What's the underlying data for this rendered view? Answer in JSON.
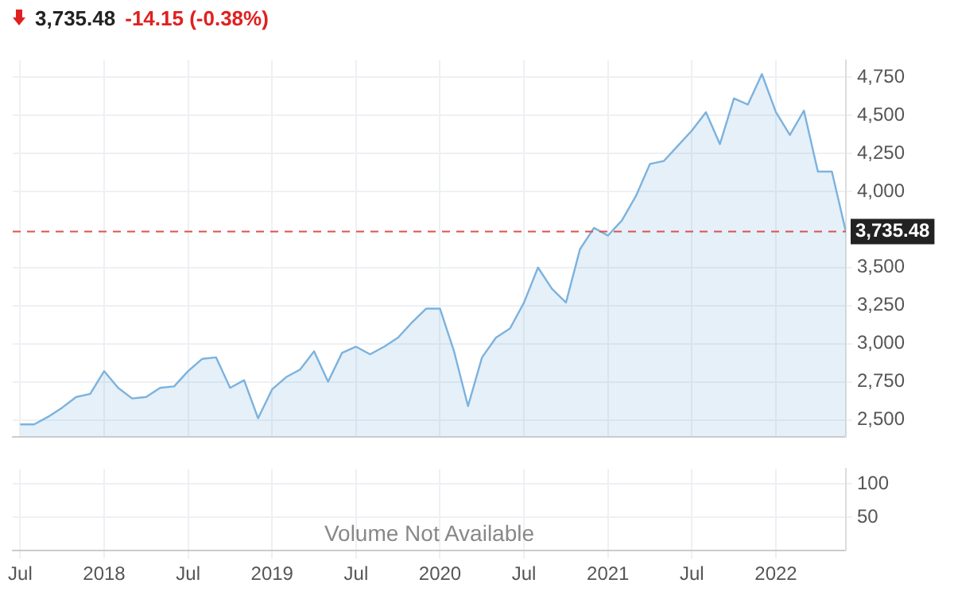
{
  "chart_data": [
    {
      "type": "area",
      "title": "3,735.48",
      "subtitle": "-14.15 (-0.38%)",
      "x": [
        "2017-07",
        "2017-08",
        "2017-09",
        "2017-10",
        "2017-11",
        "2017-12",
        "2018-01",
        "2018-02",
        "2018-03",
        "2018-04",
        "2018-05",
        "2018-06",
        "2018-07",
        "2018-08",
        "2018-09",
        "2018-10",
        "2018-11",
        "2018-12",
        "2019-01",
        "2019-02",
        "2019-03",
        "2019-04",
        "2019-05",
        "2019-06",
        "2019-07",
        "2019-08",
        "2019-09",
        "2019-10",
        "2019-11",
        "2019-12",
        "2020-01",
        "2020-02",
        "2020-03",
        "2020-04",
        "2020-05",
        "2020-06",
        "2020-07",
        "2020-08",
        "2020-09",
        "2020-10",
        "2020-11",
        "2020-12",
        "2021-01",
        "2021-02",
        "2021-03",
        "2021-04",
        "2021-05",
        "2021-06",
        "2021-07",
        "2021-08",
        "2021-09",
        "2021-10",
        "2021-11",
        "2021-12",
        "2022-01",
        "2022-02",
        "2022-03",
        "2022-04",
        "2022-05",
        "2022-06"
      ],
      "series": [
        {
          "color": "#7cb2de",
          "values": [
            2470,
            2470,
            2520,
            2580,
            2650,
            2670,
            2820,
            2710,
            2640,
            2650,
            2710,
            2720,
            2820,
            2900,
            2910,
            2710,
            2760,
            2510,
            2700,
            2780,
            2830,
            2950,
            2750,
            2940,
            2980,
            2930,
            2980,
            3040,
            3140,
            3230,
            3230,
            2950,
            2590,
            2910,
            3040,
            3100,
            3270,
            3500,
            3360,
            3270,
            3620,
            3760,
            3710,
            3810,
            3970,
            4180,
            4200,
            4300,
            4400,
            4520,
            4310,
            4610,
            4570,
            4770,
            4520,
            4370,
            4530,
            4130,
            4130,
            3735.48
          ]
        }
      ],
      "xlim": [
        "2017-06-15",
        "2022-06"
      ],
      "xticks": [
        {
          "value": "2017-07",
          "label": null
        },
        {
          "value": "2018",
          "label": null
        },
        {
          "value": "2018-07",
          "label": null
        },
        {
          "value": "2019",
          "label": null
        },
        {
          "value": "2019-07",
          "label": null
        },
        {
          "value": "2020",
          "label": null
        },
        {
          "value": "2020-07",
          "label": null
        },
        {
          "value": "2021",
          "label": null
        },
        {
          "value": "2021-07",
          "label": null
        },
        {
          "value": "2022",
          "label": null
        }
      ],
      "ylim": [
        2390,
        4860
      ],
      "yticks": [
        {
          "value": 2500,
          "label": "2,500"
        },
        {
          "value": 2750,
          "label": "2,750"
        },
        {
          "value": 3000,
          "label": "3,000"
        },
        {
          "value": 3250,
          "label": "3,250"
        },
        {
          "value": 3500,
          "label": "3,500"
        },
        {
          "value": 4000,
          "label": "4,000"
        },
        {
          "value": 4250,
          "label": "4,250"
        },
        {
          "value": 4500,
          "label": "4,500"
        },
        {
          "value": 4750,
          "label": "4,750"
        }
      ],
      "ref_lines": [
        {
          "axis": "y",
          "value": 3735.48,
          "label": "3,735.48",
          "color": "#d9534f",
          "line_style": "dashed"
        }
      ],
      "grid": true,
      "tick_labels": "y"
    },
    {
      "type": "bar",
      "xlim": [
        "2017-06-15",
        "2022-06"
      ],
      "xticks": [
        {
          "value": "2017-07",
          "label": "Jul"
        },
        "2018",
        {
          "value": "2018-07",
          "label": "Jul"
        },
        "2019",
        {
          "value": "2019-07",
          "label": "Jul"
        },
        "2020",
        {
          "value": "2020-07",
          "label": "Jul"
        },
        "2021",
        {
          "value": "2021-07",
          "label": "Jul"
        },
        "2022"
      ],
      "ylim": [
        0,
        122
      ],
      "yticks": [
        50,
        100
      ],
      "annotations": [
        "Volume Not Available"
      ],
      "grid": true
    }
  ]
}
